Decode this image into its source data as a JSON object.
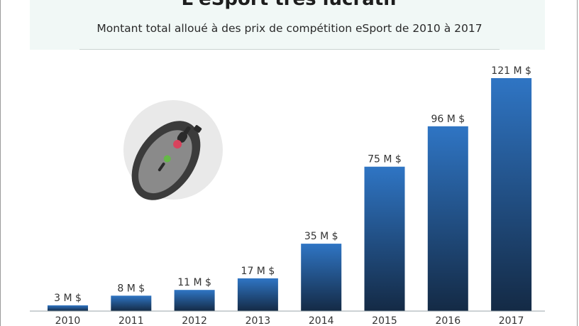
{
  "title": "L'eSport très lucratif",
  "subtitle": "Montant total alloué à des prix de compétition eSport de 2010 à 2017",
  "colors": {
    "bar_top": "#2f75c4",
    "bar_bottom": "#142a45",
    "header_bg": "#f1f8f6"
  },
  "illustration": {
    "icon": "gaming-mouse-icon"
  },
  "chart_data": {
    "type": "bar",
    "title": "L'eSport très lucratif",
    "subtitle": "Montant total alloué à des prix de compétition eSport de 2010 à 2017",
    "categories": [
      "2010",
      "2011",
      "2012",
      "2013",
      "2014",
      "2015",
      "2016",
      "2017"
    ],
    "values": [
      3,
      8,
      11,
      17,
      35,
      75,
      96,
      121
    ],
    "data_labels": [
      "3 M $",
      "8 M $",
      "11 M $",
      "17 M $",
      "35 M $",
      "75 M $",
      "96 M $",
      "121 M $"
    ],
    "unit": "M $",
    "xlabel": "",
    "ylabel": "",
    "ylim": [
      0,
      121
    ],
    "grid": false,
    "legend": "none"
  }
}
